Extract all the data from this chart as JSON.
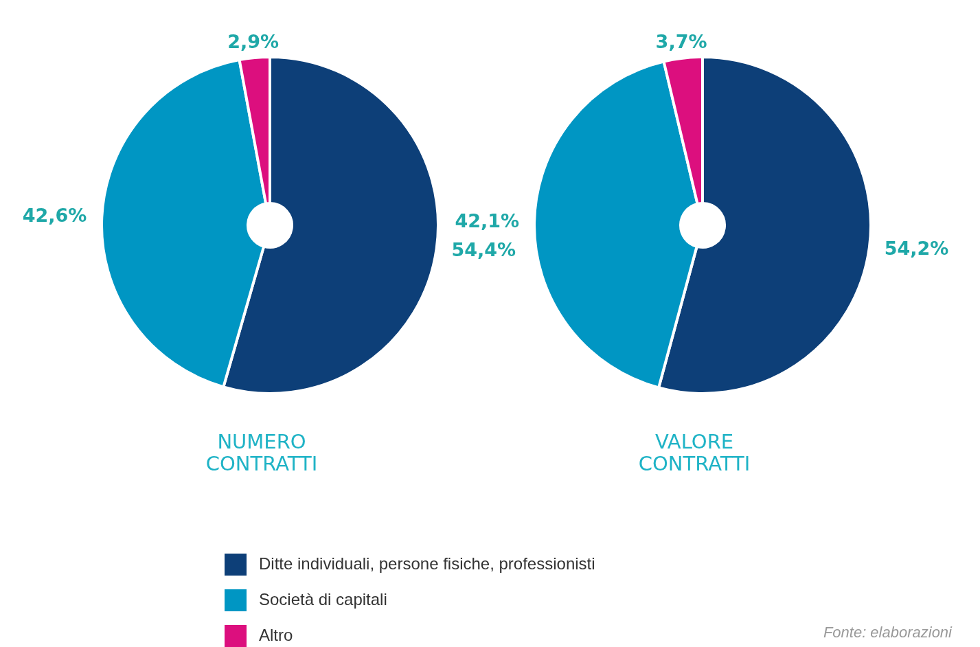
{
  "chart_data": [
    {
      "type": "donut",
      "title": "NUMERO CONTRATTI",
      "categories": [
        "Ditte individuali, persone fisiche, professionisti",
        "Società di capitali",
        "Altro"
      ],
      "values": [
        54.4,
        42.6,
        2.9
      ],
      "colors": [
        "#0d3f78",
        "#0096c3",
        "#dc0f7e"
      ],
      "value_labels": [
        "54,4%",
        "42,6%",
        "2,9%"
      ],
      "legend": "bottom"
    },
    {
      "type": "donut",
      "title": "VALORE CONTRATTI",
      "values": [
        54.2,
        42.1,
        3.7
      ],
      "colors": [
        "#0d3f78",
        "#0096c3",
        "#dc0f7e"
      ],
      "value_labels": [
        "54,2%",
        "42,1%",
        "3,7%"
      ],
      "annotations": [
        "Fonte: elaborazioni"
      ]
    }
  ]
}
